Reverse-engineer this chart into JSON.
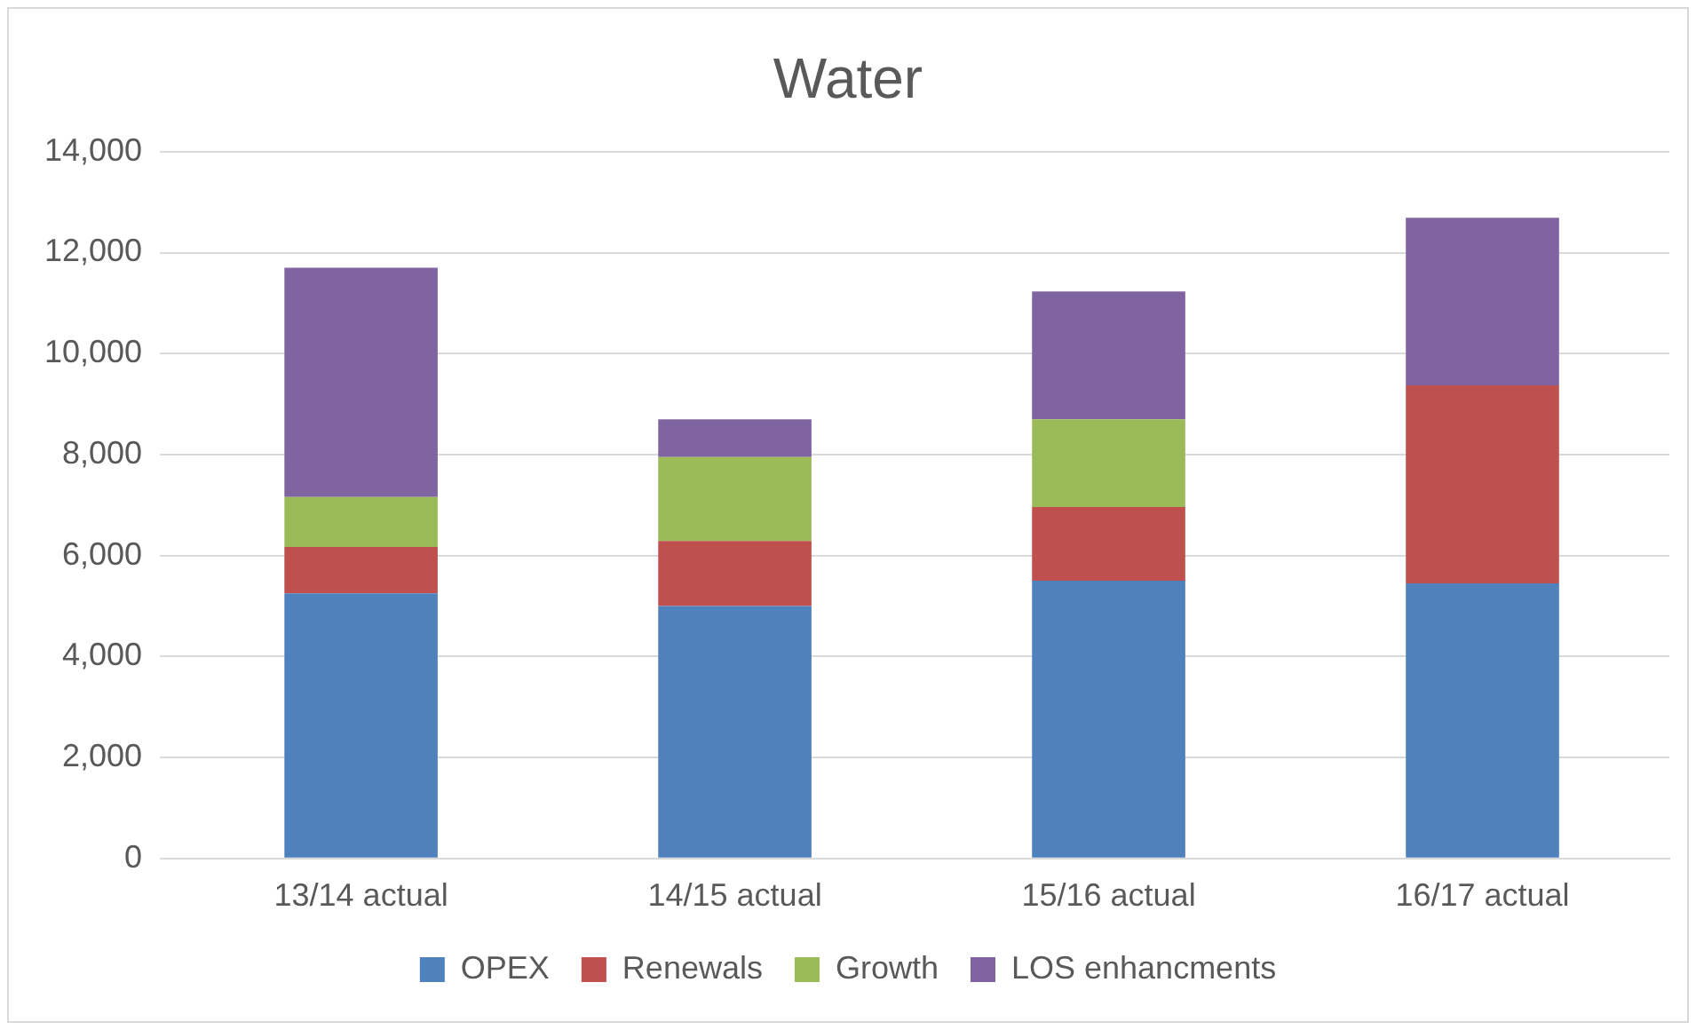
{
  "chart_data": {
    "type": "bar",
    "title": "Water",
    "stacked": true,
    "categories": [
      "13/14 actual",
      "14/15 actual",
      "15/16 actual",
      "16/17 actual"
    ],
    "series": [
      {
        "name": "OPEX",
        "color": "#4f81bd",
        "values": [
          5250,
          5000,
          5500,
          5450
        ]
      },
      {
        "name": "Renewals",
        "color": "#c0504d",
        "values": [
          920,
          1290,
          1460,
          3920
        ]
      },
      {
        "name": "Growth",
        "color": "#9bbb59",
        "values": [
          990,
          1660,
          1740,
          0
        ]
      },
      {
        "name": "LOS enhancments",
        "color": "#8064a2",
        "values": [
          4540,
          750,
          2530,
          3320
        ]
      }
    ],
    "ylim": [
      0,
      14000
    ],
    "yticks": [
      0,
      {
        "value": 2000,
        "label": "2,000"
      },
      {
        "value": 4000,
        "label": "4,000"
      },
      {
        "value": 6000,
        "label": "6,000"
      },
      {
        "value": 8000,
        "label": "8,000"
      },
      {
        "value": 10000,
        "label": "10,000"
      },
      {
        "value": 12000,
        "label": "12,000"
      },
      {
        "value": 14000,
        "label": "14,000"
      }
    ],
    "grid": "y",
    "legend": "bottom"
  }
}
